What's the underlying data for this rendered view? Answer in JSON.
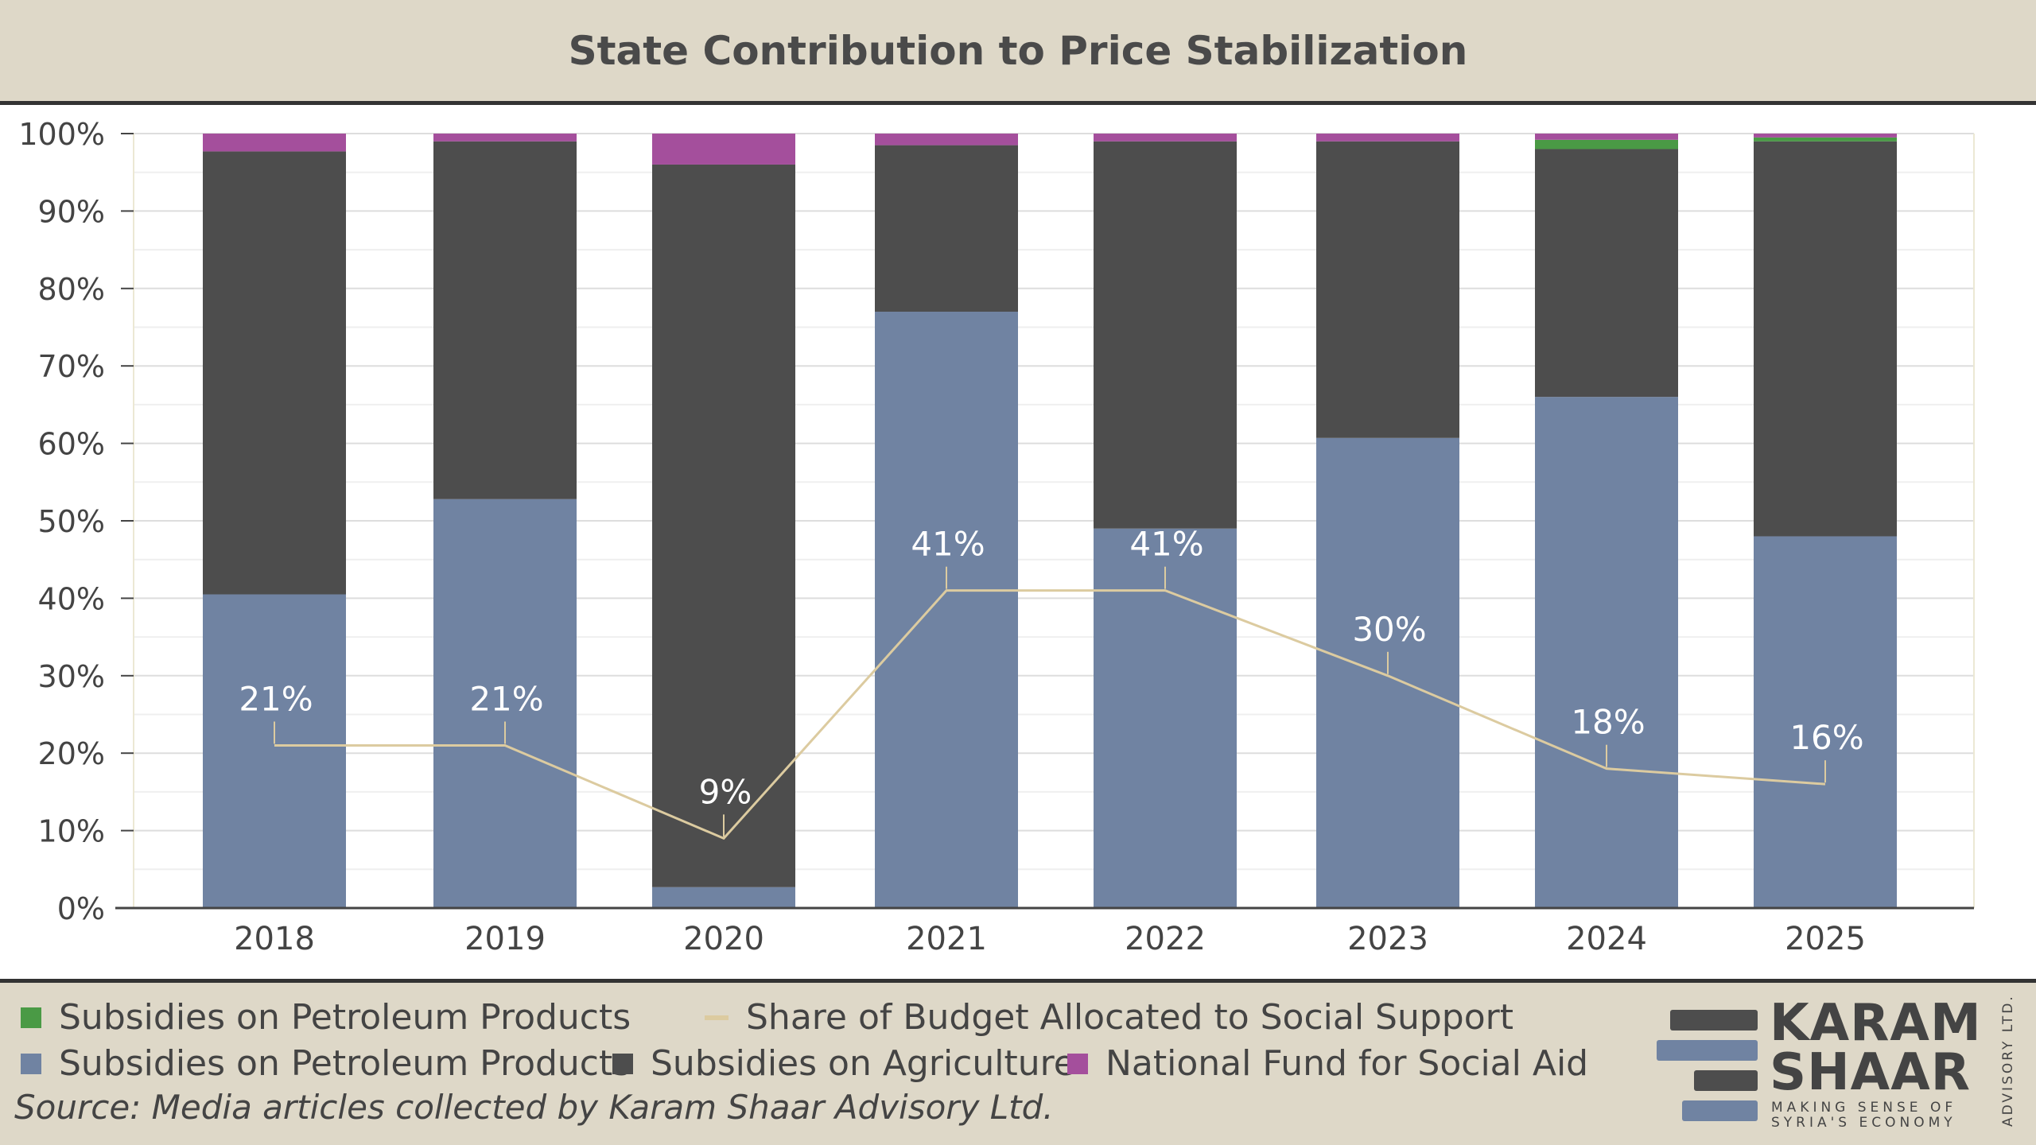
{
  "title": "State Contribution to Price Stabilization",
  "legend": {
    "items": [
      {
        "label": "Subsidies on Petroleum Products",
        "color": "#4a9a45",
        "kind": "box"
      },
      {
        "label": "Share of Budget Allocated to Social Support",
        "color": "#dccba0",
        "kind": "line"
      },
      {
        "label": "Subsidies on Petroleum Products",
        "color": "#7083a2",
        "kind": "box"
      },
      {
        "label": "Subsidies on Agriculture",
        "color": "#4d4d4d",
        "kind": "box"
      },
      {
        "label": "National Fund for Social Aid",
        "color": "#a44f9c",
        "kind": "box"
      }
    ]
  },
  "source": "Source: Media articles collected by Karam Shaar Advisory Ltd.",
  "logo": {
    "name_line1": "KARAM",
    "name_line2": "SHAAR",
    "tagline_line1": "MAKING SENSE OF",
    "tagline_line2": "SYRIA'S ECONOMY",
    "side": "ADVISORY LTD."
  },
  "chart_data": {
    "type": "bar",
    "stacked": true,
    "categories": [
      "2018",
      "2019",
      "2020",
      "2021",
      "2022",
      "2023",
      "2024",
      "2025"
    ],
    "ylim": [
      0,
      100
    ],
    "yticks": [
      "0%",
      "10%",
      "20%",
      "30%",
      "40%",
      "50%",
      "60%",
      "70%",
      "80%",
      "90%",
      "100%"
    ],
    "grid": true,
    "series": [
      {
        "name": "Subsidies on Petroleum Products",
        "color": "#7083a2",
        "values": [
          40.5,
          52.8,
          2.7,
          77.0,
          49.0,
          60.7,
          66.0,
          48.0
        ]
      },
      {
        "name": "Subsidies on Agriculture",
        "color": "#4d4d4d",
        "values": [
          57.2,
          46.2,
          93.3,
          21.5,
          50.0,
          38.3,
          32.0,
          51.0
        ]
      },
      {
        "name": "Subsidies on Petroleum Products",
        "color": "#4a9a45",
        "values": [
          0,
          0,
          0,
          0,
          0,
          0,
          1.2,
          0.5
        ]
      },
      {
        "name": "National Fund for Social Aid",
        "color": "#a44f9c",
        "values": [
          2.3,
          1.0,
          4.0,
          1.5,
          1.0,
          1.0,
          0.8,
          0.5
        ]
      }
    ],
    "line": {
      "name": "Share of Budget Allocated to Social Support",
      "color": "#dccba0",
      "values": [
        21,
        21,
        9,
        41,
        41,
        30,
        18,
        16
      ],
      "labels": [
        "21%",
        "21%",
        "9%",
        "41%",
        "41%",
        "30%",
        "18%",
        "16%"
      ]
    }
  }
}
